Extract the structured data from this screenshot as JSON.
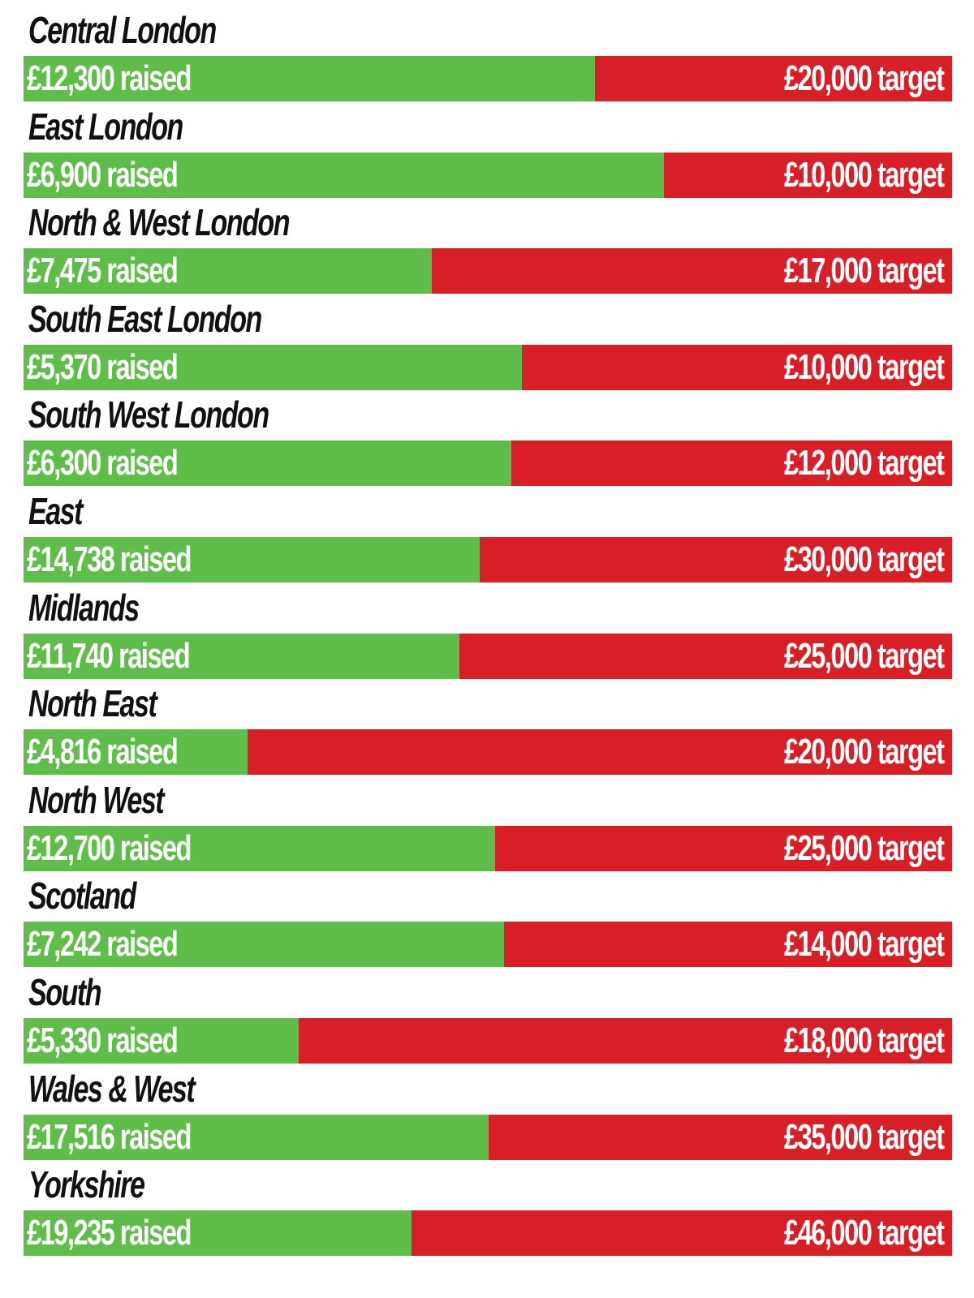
{
  "colors": {
    "raised": "#5fbd4a",
    "remaining": "#d81f27",
    "label_text": "#ffffff",
    "name_text": "#111111",
    "background": "#ffffff"
  },
  "chart_data": {
    "type": "bar",
    "orientation": "horizontal",
    "stacked": true,
    "series": [
      {
        "name": "raised",
        "values": [
          12300,
          6900,
          7475,
          5370,
          6300,
          14738,
          11740,
          4816,
          12700,
          7242,
          5330,
          17516,
          19235
        ]
      },
      {
        "name": "target",
        "values": [
          20000,
          10000,
          17000,
          10000,
          12000,
          30000,
          25000,
          20000,
          25000,
          14000,
          18000,
          35000,
          46000
        ]
      }
    ],
    "rows": [
      {
        "region": "Central London",
        "raised": 12300,
        "target": 20000,
        "raised_label": "£12,300 raised",
        "target_label": "£20,000 target"
      },
      {
        "region": "East London",
        "raised": 6900,
        "target": 10000,
        "raised_label": "£6,900 raised",
        "target_label": "£10,000 target"
      },
      {
        "region": "North & West London",
        "raised": 7475,
        "target": 17000,
        "raised_label": "£7,475 raised",
        "target_label": "£17,000 target"
      },
      {
        "region": "South East London",
        "raised": 5370,
        "target": 10000,
        "raised_label": "£5,370 raised",
        "target_label": "£10,000 target"
      },
      {
        "region": "South West London",
        "raised": 6300,
        "target": 12000,
        "raised_label": "£6,300 raised",
        "target_label": "£12,000 target"
      },
      {
        "region": "East",
        "raised": 14738,
        "target": 30000,
        "raised_label": "£14,738 raised",
        "target_label": "£30,000 target"
      },
      {
        "region": "Midlands",
        "raised": 11740,
        "target": 25000,
        "raised_label": "£11,740 raised",
        "target_label": "£25,000 target"
      },
      {
        "region": "North East",
        "raised": 4816,
        "target": 20000,
        "raised_label": "£4,816 raised",
        "target_label": "£20,000 target"
      },
      {
        "region": "North West",
        "raised": 12700,
        "target": 25000,
        "raised_label": "£12,700 raised",
        "target_label": "£25,000 target"
      },
      {
        "region": "Scotland",
        "raised": 7242,
        "target": 14000,
        "raised_label": "£7,242 raised",
        "target_label": "£14,000 target"
      },
      {
        "region": "South",
        "raised": 5330,
        "target": 18000,
        "raised_label": "£5,330 raised",
        "target_label": "£18,000 target"
      },
      {
        "region": "Wales & West",
        "raised": 17516,
        "target": 35000,
        "raised_label": "£17,516 raised",
        "target_label": "£35,000 target"
      },
      {
        "region": "Yorkshire",
        "raised": 19235,
        "target": 46000,
        "raised_label": "£19,235 raised",
        "target_label": "£46,000 target"
      }
    ]
  }
}
